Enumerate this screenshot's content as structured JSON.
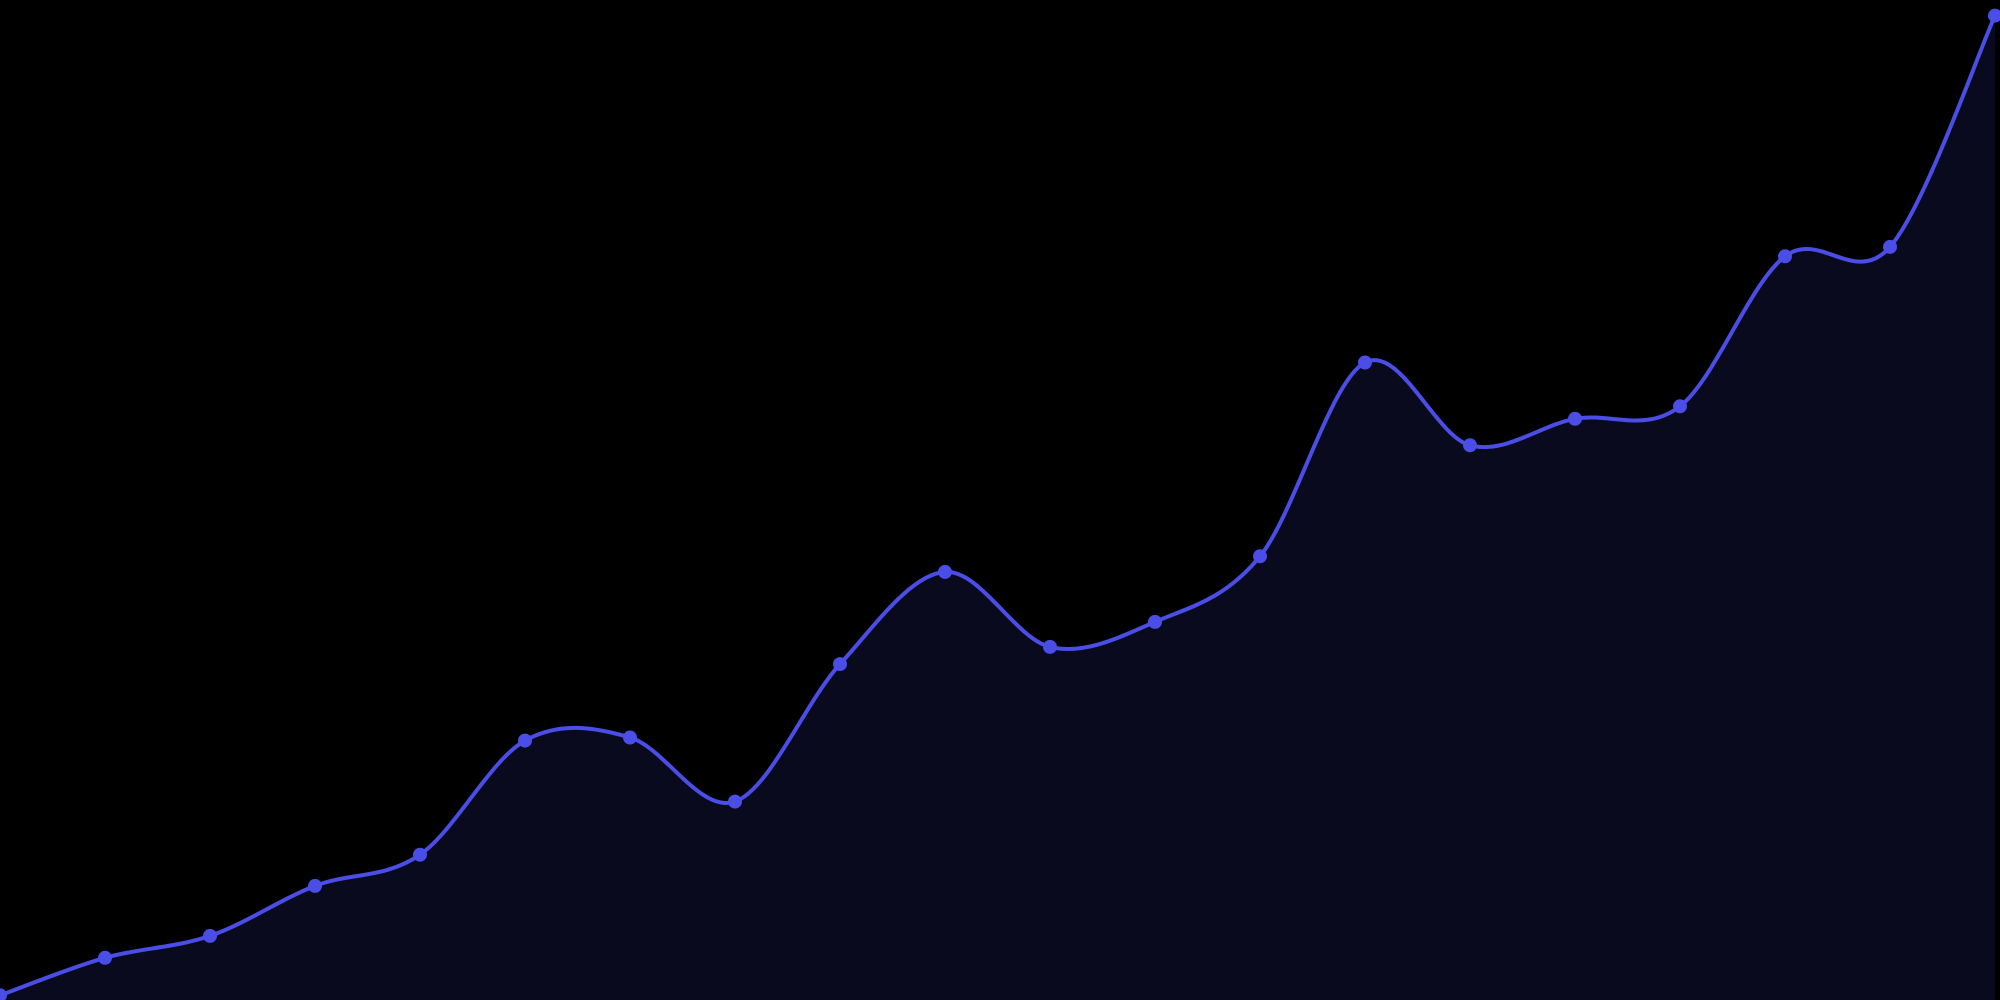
{
  "chart_data": {
    "type": "area",
    "x": [
      0,
      1,
      2,
      3,
      4,
      5,
      6,
      7,
      8,
      9,
      10,
      11,
      12,
      13,
      14,
      15,
      16,
      17,
      18,
      19
    ],
    "series": [
      {
        "values": [
          1.5,
          13.5,
          20.5,
          36.5,
          46.5,
          83.0,
          84.0,
          63.5,
          107.5,
          137.0,
          113.0,
          121.0,
          142.0,
          204.0,
          177.5,
          186.0,
          190.0,
          238.0,
          241.0,
          315.0
        ]
      }
    ],
    "ylim": [
      0,
      320
    ],
    "grid": false,
    "colors": {
      "background": "#000000",
      "line": "#4a4de6",
      "fill": "#090a1e",
      "marker": "#4a4de6"
    }
  }
}
